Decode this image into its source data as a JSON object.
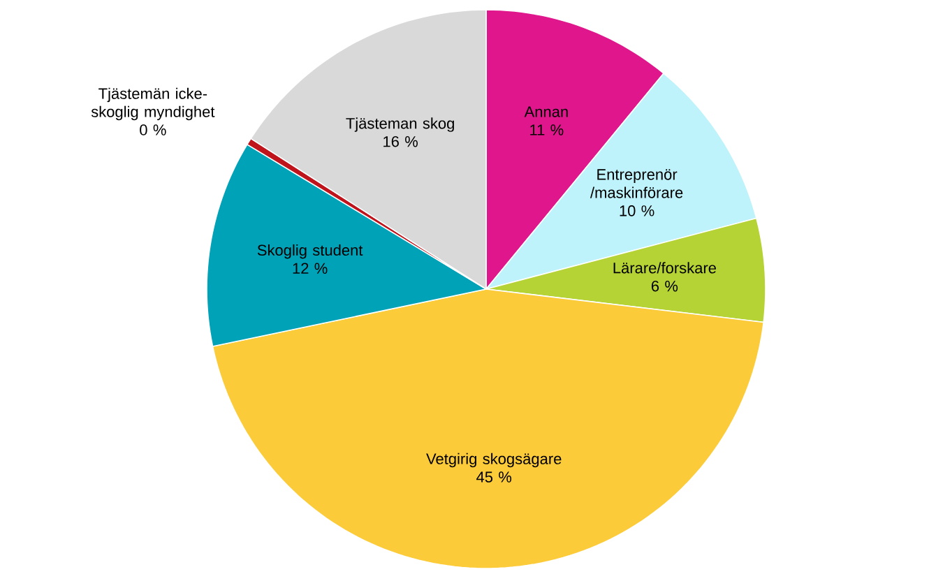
{
  "chart_data": {
    "type": "pie",
    "categories": [
      "Annan",
      "Entreprenör /maskinförare",
      "Lärare/forskare",
      "Vetgirig skogsägare",
      "Skoglig student",
      "Tjästemän icke-skoglig myndighet",
      "Tjästeman skog"
    ],
    "values": [
      11,
      10,
      6,
      45,
      12,
      0.4,
      16
    ],
    "value_labels": [
      "11 %",
      "10 %",
      "6 %",
      "45 %",
      "12 %",
      "0 %",
      "16 %"
    ],
    "colors": [
      "#e0168c",
      "#bff3fb",
      "#b5d334",
      "#fccb3a",
      "#00a2b8",
      "#c0141c",
      "#d9d9d9"
    ]
  }
}
